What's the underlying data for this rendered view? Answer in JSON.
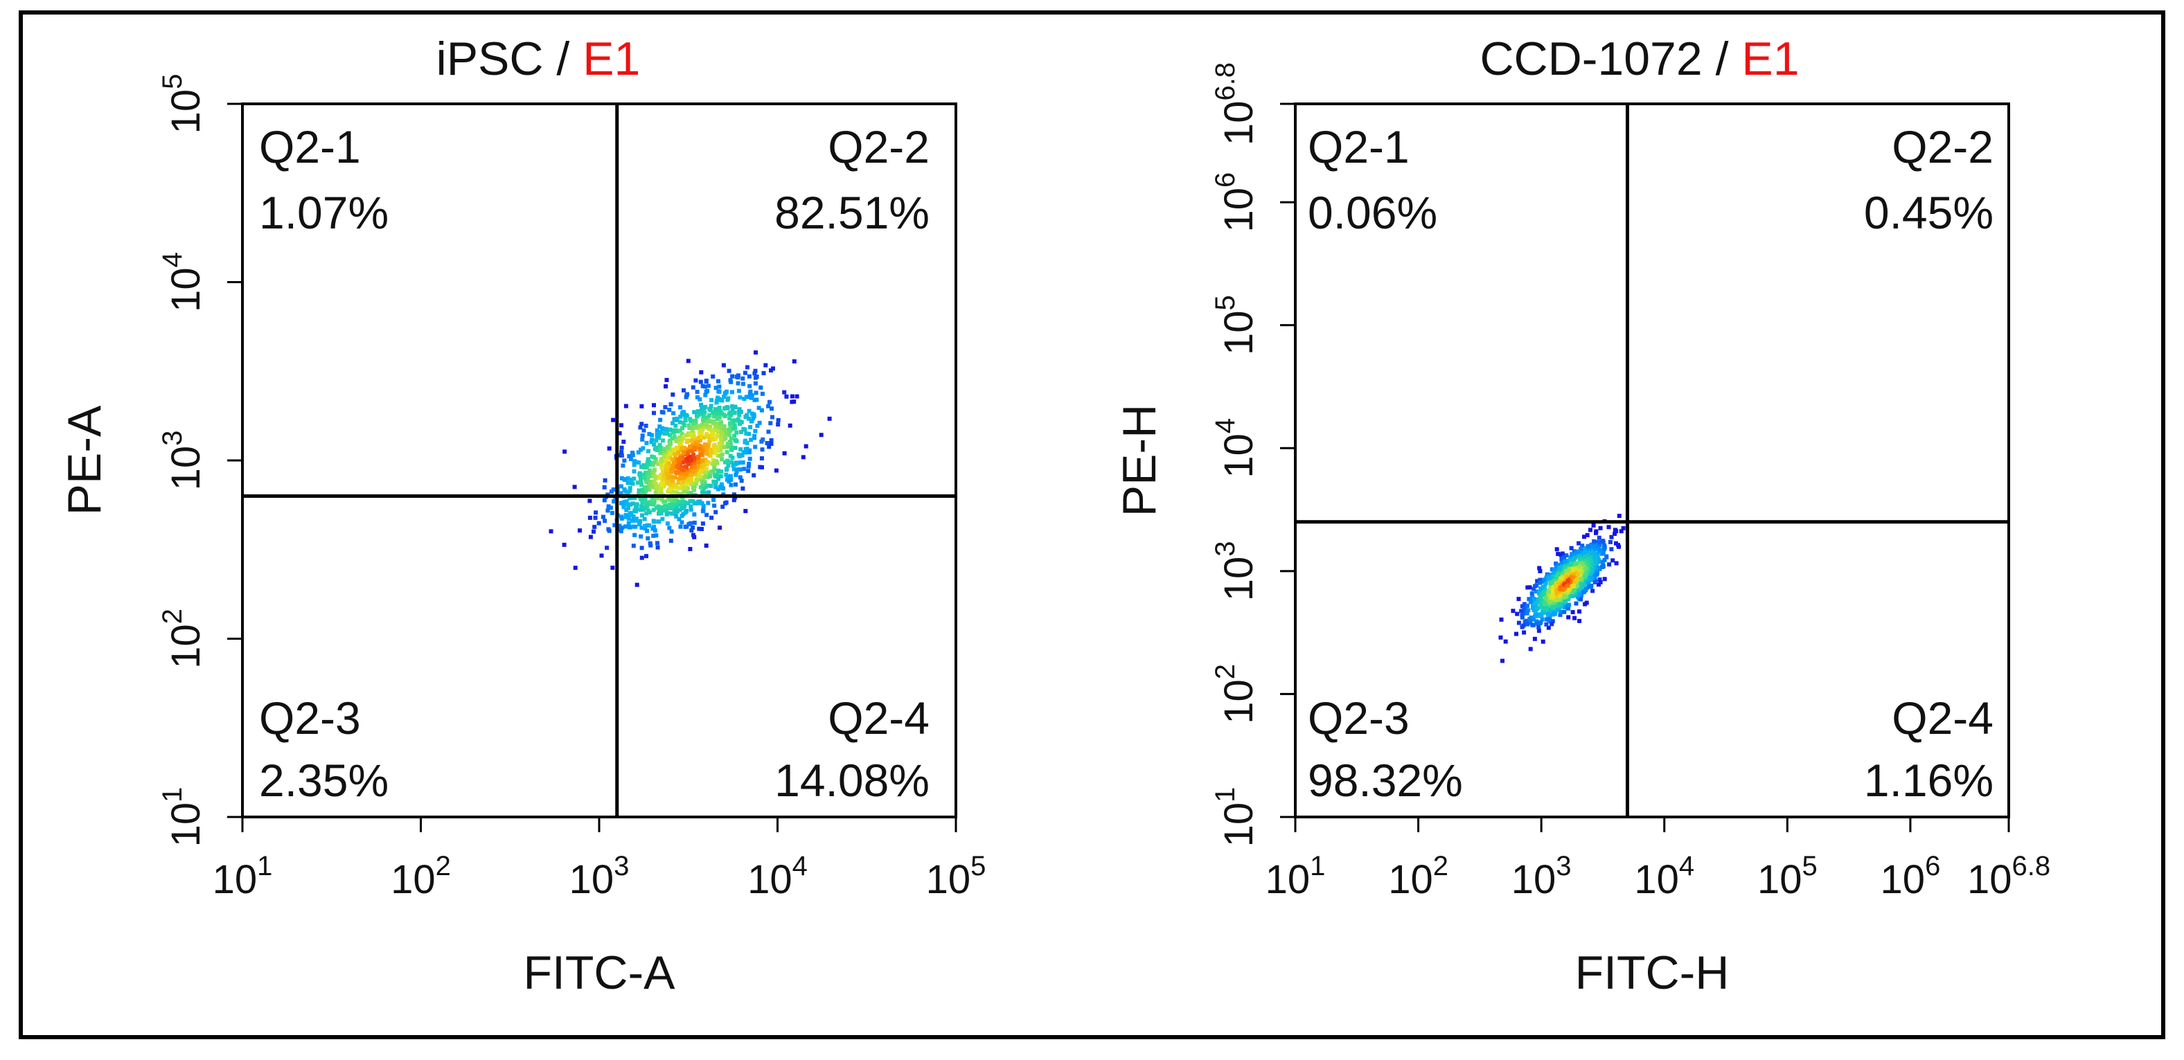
{
  "chart_data": [
    {
      "type": "scatter",
      "id": "ipsc",
      "title_prefix": "iPSC / ",
      "title_highlight": "E1",
      "highlight_color": "#ee1111",
      "xlabel": "FITC-A",
      "ylabel": "PE-A",
      "xscale": "log10",
      "yscale": "log10",
      "xlim_exp": [
        1,
        5
      ],
      "ylim_exp": [
        1,
        5
      ],
      "x_ticks": [
        {
          "base": "10",
          "exp": "1"
        },
        {
          "base": "10",
          "exp": "2"
        },
        {
          "base": "10",
          "exp": "3"
        },
        {
          "base": "10",
          "exp": "4"
        },
        {
          "base": "10",
          "exp": "5"
        }
      ],
      "y_ticks": [
        {
          "base": "10",
          "exp": "1"
        },
        {
          "base": "10",
          "exp": "2"
        },
        {
          "base": "10",
          "exp": "3"
        },
        {
          "base": "10",
          "exp": "4"
        },
        {
          "base": "10",
          "exp": "5"
        }
      ],
      "gate_x_exp": 3.1,
      "gate_y_exp": 2.8,
      "quadrants": [
        {
          "name": "Q2-1",
          "value": "1.07%",
          "position": "top-left"
        },
        {
          "name": "Q2-2",
          "value": "82.51%",
          "position": "top-right"
        },
        {
          "name": "Q2-3",
          "value": "2.35%",
          "position": "bottom-left"
        },
        {
          "name": "Q2-4",
          "value": "14.08%",
          "position": "bottom-right"
        }
      ],
      "population": {
        "center_exp": [
          3.5,
          3.0
        ],
        "spread_exp": [
          0.22,
          0.22
        ],
        "correlation": 0.6
      }
    },
    {
      "type": "scatter",
      "id": "ccd1072",
      "title_prefix": "CCD-1072 / ",
      "title_highlight": "E1",
      "highlight_color": "#ee1111",
      "xlabel": "FITC-H",
      "ylabel": "PE-H",
      "xscale": "log10",
      "yscale": "log10",
      "xlim_exp": [
        1,
        6.8
      ],
      "ylim_exp": [
        1,
        6.8
      ],
      "x_ticks": [
        {
          "base": "10",
          "exp": "1"
        },
        {
          "base": "10",
          "exp": "2"
        },
        {
          "base": "10",
          "exp": "3"
        },
        {
          "base": "10",
          "exp": "4"
        },
        {
          "base": "10",
          "exp": "5"
        },
        {
          "base": "10",
          "exp": "6"
        },
        {
          "base": "10",
          "exp": "6.8"
        }
      ],
      "y_ticks": [
        {
          "base": "10",
          "exp": "1"
        },
        {
          "base": "10",
          "exp": "2"
        },
        {
          "base": "10",
          "exp": "3"
        },
        {
          "base": "10",
          "exp": "4"
        },
        {
          "base": "10",
          "exp": "5"
        },
        {
          "base": "10",
          "exp": "6"
        },
        {
          "base": "10",
          "exp": "6.8"
        }
      ],
      "gate_x_exp": 3.7,
      "gate_y_exp": 3.4,
      "quadrants": [
        {
          "name": "Q2-1",
          "value": "0.06%",
          "position": "top-left"
        },
        {
          "name": "Q2-2",
          "value": "0.45%",
          "position": "top-right"
        },
        {
          "name": "Q2-3",
          "value": "98.32%",
          "position": "bottom-left"
        },
        {
          "name": "Q2-4",
          "value": "1.16%",
          "position": "bottom-right"
        }
      ],
      "population": {
        "center_exp": [
          3.2,
          2.9
        ],
        "spread_exp": [
          0.16,
          0.16
        ],
        "correlation": 0.75
      }
    }
  ]
}
